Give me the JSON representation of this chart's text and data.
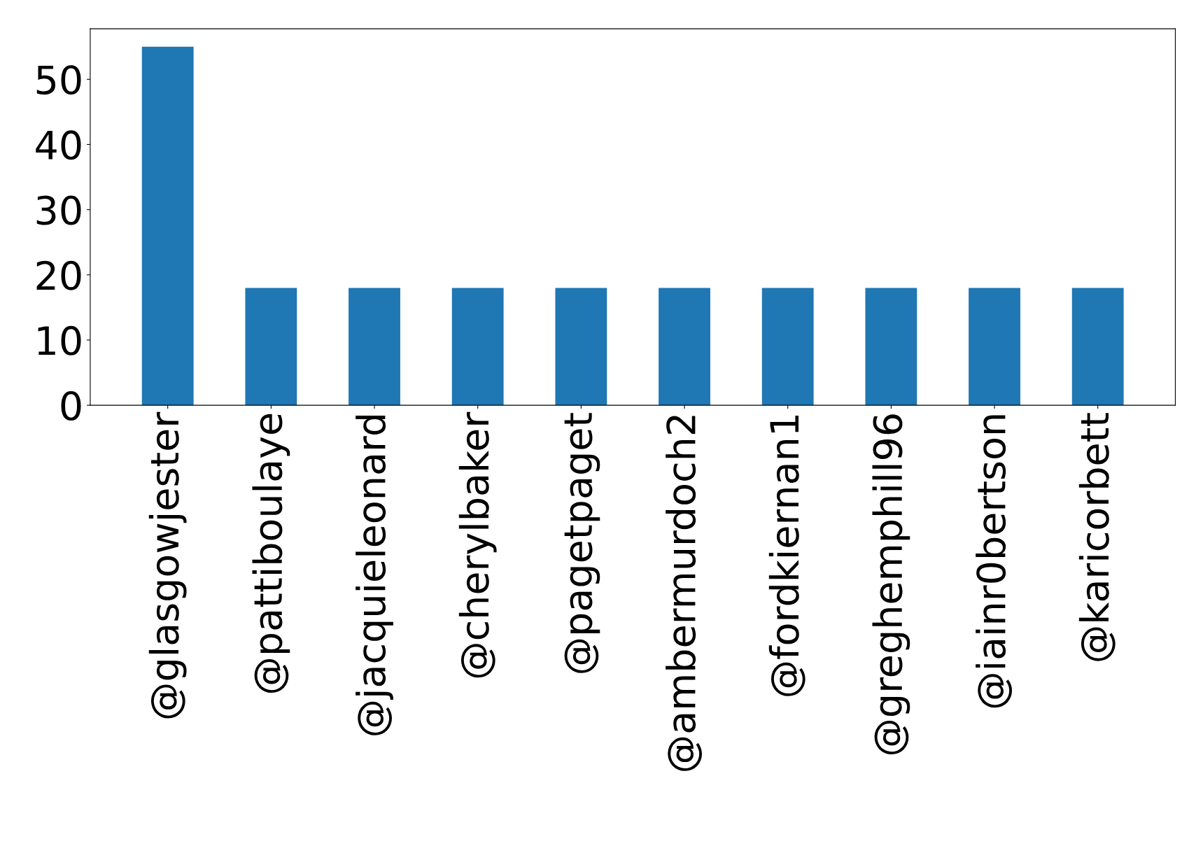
{
  "chart_data": {
    "type": "bar",
    "categories": [
      "@glasgowjester",
      "@pattiboulaye",
      "@jacquieleonard",
      "@cherylbaker",
      "@pagetpaget",
      "@ambermurdoch2",
      "@fordkiernan1",
      "@greghemphill96",
      "@iainr0bertson",
      "@karicorbett"
    ],
    "values": [
      55,
      18,
      18,
      18,
      18,
      18,
      18,
      18,
      18,
      18
    ],
    "color": "#1f77b4",
    "ylim": [
      0,
      57.75
    ],
    "yticks": [
      0,
      10,
      20,
      30,
      40,
      50
    ],
    "grid": false,
    "legend": false
  }
}
